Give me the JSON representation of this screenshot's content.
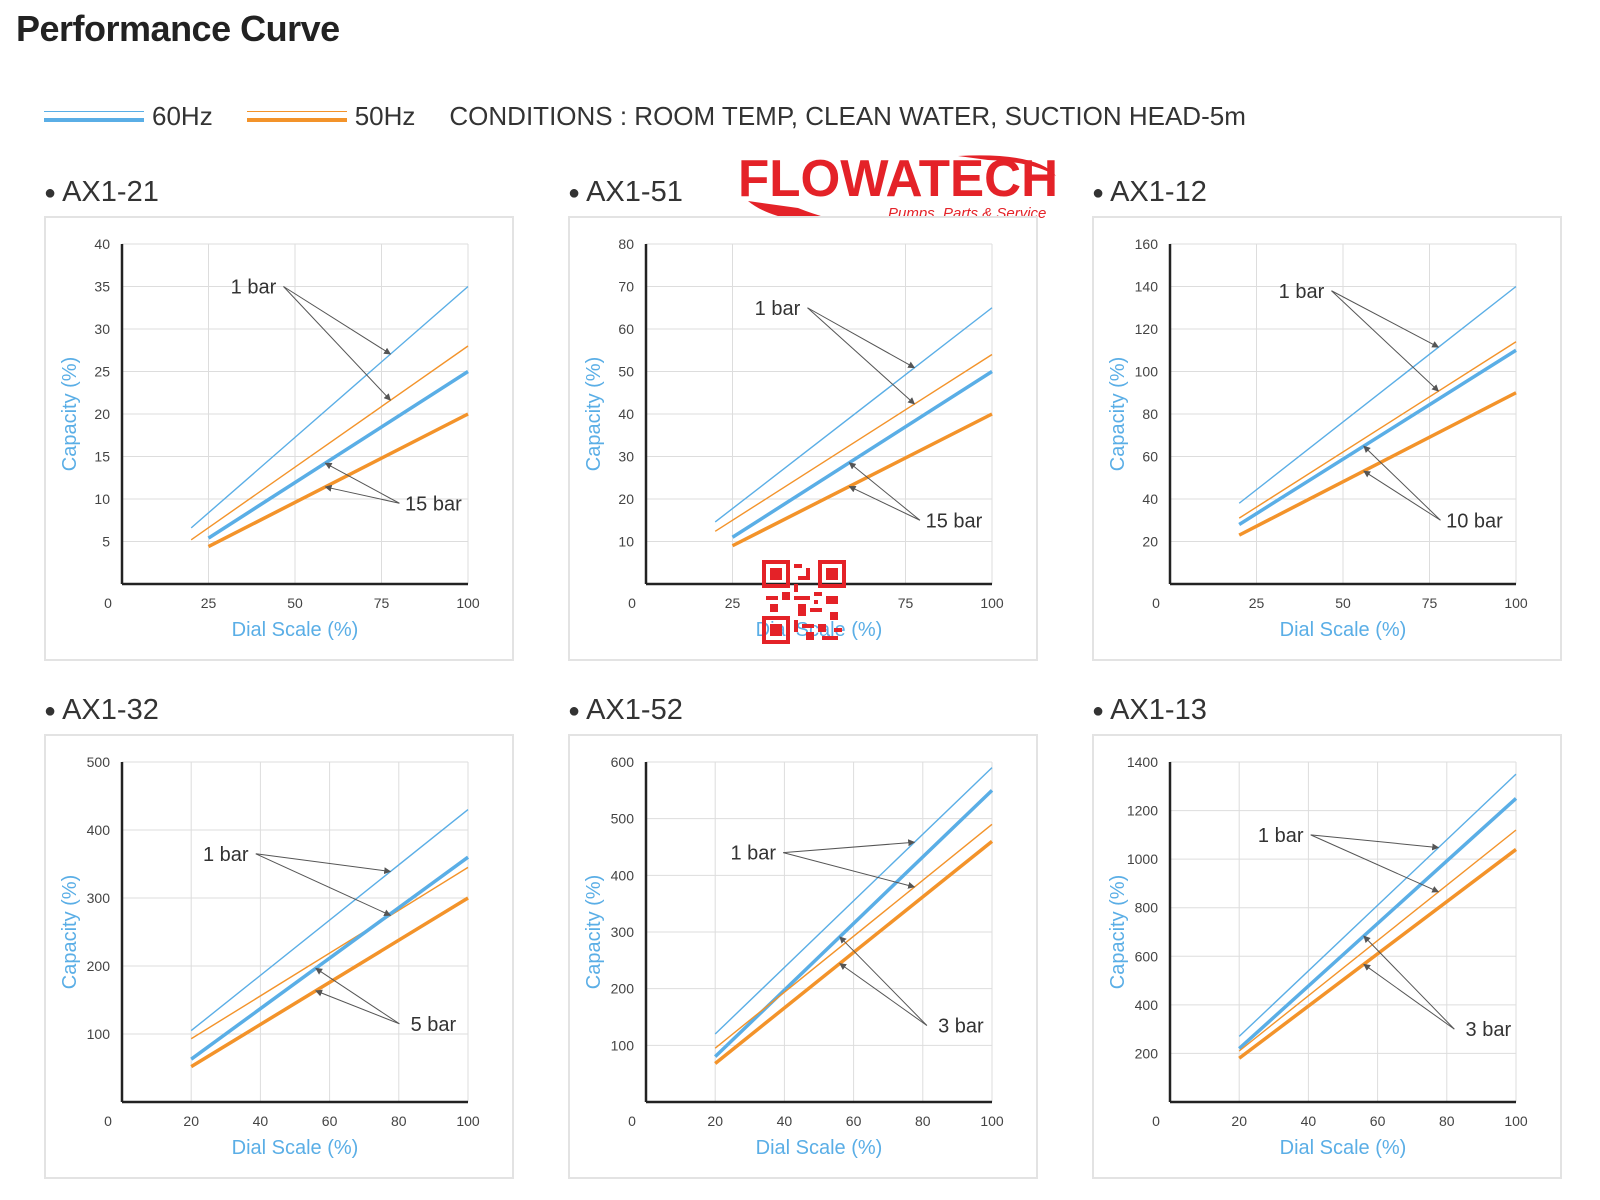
{
  "page": {
    "title": "Performance Curve"
  },
  "legend": {
    "items": [
      {
        "label": "60Hz",
        "color": "#5aaee6"
      },
      {
        "label": "50Hz",
        "color": "#f3932a"
      }
    ],
    "conditions": "CONDITIONS : ROOM TEMP, CLEAN WATER, SUCTION HEAD-5m"
  },
  "logo": {
    "text": "FLOWATECH",
    "tagline": "Pumps, Parts & Service",
    "color": "#e42228"
  },
  "colors": {
    "hz60": "#5aaee6",
    "hz50": "#f3932a",
    "axis_label": "#5aaee6",
    "grid": "#dddddd",
    "arrow": "#555555"
  },
  "chart_data": [
    {
      "name": "AX1-21",
      "type": "line",
      "xlabel": "Dial Scale (%)",
      "ylabel": "Capacity (%)",
      "xlim": [
        0,
        100
      ],
      "ylim": [
        0,
        40
      ],
      "xticks": [
        0,
        25,
        50,
        75,
        100
      ],
      "yticks": [
        0,
        5,
        10,
        15,
        20,
        25,
        30,
        35,
        40
      ],
      "series": [
        {
          "freq": "60Hz",
          "pressure": "1 bar",
          "x": [
            20,
            100
          ],
          "y": [
            6.6,
            35
          ]
        },
        {
          "freq": "50Hz",
          "pressure": "1 bar",
          "x": [
            20,
            100
          ],
          "y": [
            5.2,
            28
          ]
        },
        {
          "freq": "60Hz",
          "pressure": "15 bar",
          "x": [
            25,
            100
          ],
          "y": [
            5.4,
            25
          ]
        },
        {
          "freq": "50Hz",
          "pressure": "15 bar",
          "x": [
            25,
            100
          ],
          "y": [
            4.4,
            20
          ]
        }
      ],
      "annotations": [
        {
          "text": "1 bar",
          "x": 38,
          "y": 35
        },
        {
          "text": "15 bar",
          "x": 90,
          "y": 9.5
        }
      ]
    },
    {
      "name": "AX1-51",
      "type": "line",
      "xlabel": "Dial Scale (%)",
      "ylabel": "Capacity (%)",
      "xlim": [
        0,
        100
      ],
      "ylim": [
        0,
        80
      ],
      "xticks": [
        0,
        25,
        75,
        100
      ],
      "yticks": [
        10,
        20,
        30,
        40,
        50,
        60,
        70,
        80
      ],
      "series": [
        {
          "freq": "60Hz",
          "pressure": "1 bar",
          "x": [
            20,
            100
          ],
          "y": [
            14.6,
            65
          ]
        },
        {
          "freq": "50Hz",
          "pressure": "1 bar",
          "x": [
            20,
            100
          ],
          "y": [
            12.4,
            54
          ]
        },
        {
          "freq": "60Hz",
          "pressure": "15 bar",
          "x": [
            25,
            100
          ],
          "y": [
            11,
            50
          ]
        },
        {
          "freq": "50Hz",
          "pressure": "15 bar",
          "x": [
            25,
            100
          ],
          "y": [
            9,
            40
          ]
        }
      ],
      "annotations": [
        {
          "text": "1 bar",
          "x": 38,
          "y": 65
        },
        {
          "text": "15 bar",
          "x": 89,
          "y": 15
        }
      ]
    },
    {
      "name": "AX1-12",
      "type": "line",
      "xlabel": "Dial Scale (%)",
      "ylabel": "Capacity (%)",
      "xlim": [
        0,
        100
      ],
      "ylim": [
        0,
        160
      ],
      "xticks": [
        0,
        25,
        50,
        75,
        100
      ],
      "yticks": [
        20,
        40,
        60,
        80,
        100,
        120,
        140,
        160
      ],
      "series": [
        {
          "freq": "60Hz",
          "pressure": "1 bar",
          "x": [
            20,
            100
          ],
          "y": [
            38,
            140
          ]
        },
        {
          "freq": "50Hz",
          "pressure": "1 bar",
          "x": [
            20,
            100
          ],
          "y": [
            31,
            114
          ]
        },
        {
          "freq": "60Hz",
          "pressure": "10 bar",
          "x": [
            20,
            100
          ],
          "y": [
            28,
            110
          ]
        },
        {
          "freq": "50Hz",
          "pressure": "10 bar",
          "x": [
            20,
            100
          ],
          "y": [
            23,
            90
          ]
        }
      ],
      "annotations": [
        {
          "text": "1 bar",
          "x": 38,
          "y": 138
        },
        {
          "text": "10 bar",
          "x": 88,
          "y": 30
        }
      ]
    },
    {
      "name": "AX1-32",
      "type": "line",
      "xlabel": "Dial Scale (%)",
      "ylabel": "Capacity (%)",
      "xlim": [
        0,
        100
      ],
      "ylim": [
        0,
        500
      ],
      "xticks": [
        0,
        20,
        40,
        60,
        80,
        100
      ],
      "yticks": [
        100,
        200,
        300,
        400,
        500
      ],
      "series": [
        {
          "freq": "60Hz",
          "pressure": "1 bar",
          "x": [
            20,
            100
          ],
          "y": [
            105,
            430
          ]
        },
        {
          "freq": "50Hz",
          "pressure": "1 bar",
          "x": [
            20,
            100
          ],
          "y": [
            93,
            345
          ]
        },
        {
          "freq": "60Hz",
          "pressure": "5 bar",
          "x": [
            20,
            100
          ],
          "y": [
            63,
            360
          ]
        },
        {
          "freq": "50Hz",
          "pressure": "5 bar",
          "x": [
            20,
            100
          ],
          "y": [
            52,
            300
          ]
        }
      ],
      "annotations": [
        {
          "text": "1 bar",
          "x": 30,
          "y": 365
        },
        {
          "text": "5 bar",
          "x": 90,
          "y": 115
        }
      ]
    },
    {
      "name": "AX1-52",
      "type": "line",
      "xlabel": "Dial Scale (%)",
      "ylabel": "Capacity (%)",
      "xlim": [
        0,
        100
      ],
      "ylim": [
        0,
        600
      ],
      "xticks": [
        0,
        20,
        40,
        60,
        80,
        100
      ],
      "yticks": [
        100,
        200,
        300,
        400,
        500,
        600
      ],
      "series": [
        {
          "freq": "60Hz",
          "pressure": "1 bar",
          "x": [
            20,
            100
          ],
          "y": [
            120,
            590
          ]
        },
        {
          "freq": "60Hz",
          "pressure": "3 bar",
          "x": [
            20,
            100
          ],
          "y": [
            80,
            550
          ]
        },
        {
          "freq": "50Hz",
          "pressure": "1 bar",
          "x": [
            20,
            100
          ],
          "y": [
            95,
            490
          ]
        },
        {
          "freq": "50Hz",
          "pressure": "3 bar",
          "x": [
            20,
            100
          ],
          "y": [
            68,
            460
          ]
        }
      ],
      "annotations": [
        {
          "text": "1 bar",
          "x": 31,
          "y": 440
        },
        {
          "text": "3 bar",
          "x": 91,
          "y": 135
        }
      ]
    },
    {
      "name": "AX1-13",
      "type": "line",
      "xlabel": "Dial Scale (%)",
      "ylabel": "Capacity (%)",
      "xlim": [
        0,
        100
      ],
      "ylim": [
        0,
        1400
      ],
      "xticks": [
        0,
        20,
        40,
        60,
        80,
        100
      ],
      "yticks": [
        200,
        400,
        600,
        800,
        1000,
        1200,
        1400
      ],
      "series": [
        {
          "freq": "60Hz",
          "pressure": "1 bar",
          "x": [
            20,
            100
          ],
          "y": [
            270,
            1350
          ]
        },
        {
          "freq": "60Hz",
          "pressure": "3 bar",
          "x": [
            20,
            100
          ],
          "y": [
            220,
            1250
          ]
        },
        {
          "freq": "50Hz",
          "pressure": "1 bar",
          "x": [
            20,
            100
          ],
          "y": [
            210,
            1120
          ]
        },
        {
          "freq": "50Hz",
          "pressure": "3 bar",
          "x": [
            20,
            100
          ],
          "y": [
            180,
            1040
          ]
        }
      ],
      "annotations": [
        {
          "text": "1 bar",
          "x": 32,
          "y": 1100
        },
        {
          "text": "3 bar",
          "x": 92,
          "y": 300
        }
      ]
    }
  ]
}
